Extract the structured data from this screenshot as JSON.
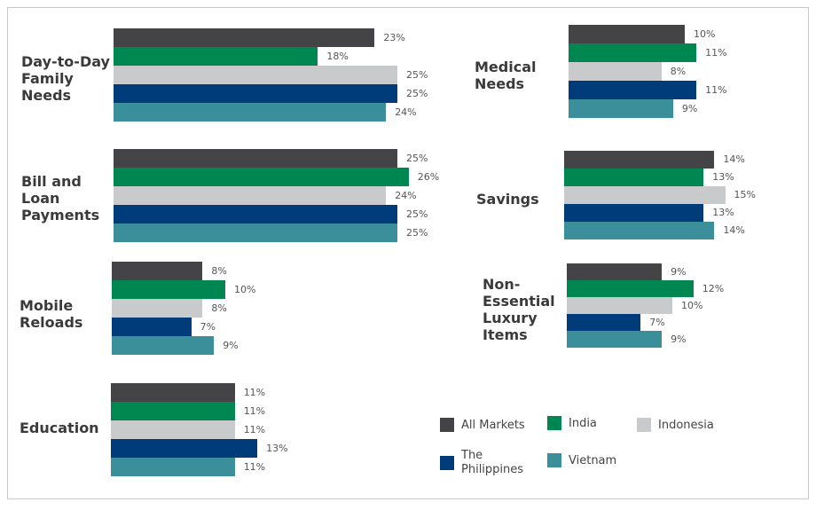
{
  "chart_data": {
    "type": "bar",
    "orientation": "horizontal",
    "unit": "%",
    "legend_position": "bottom-right",
    "grid": false,
    "series": [
      {
        "name": "All Markets",
        "color": "#444447"
      },
      {
        "name": "India",
        "color": "#008751"
      },
      {
        "name": "Indonesia",
        "color": "#c9cacc"
      },
      {
        "name": "The Philippines",
        "color": "#003b7a"
      },
      {
        "name": "Vietnam",
        "color": "#3a8f9a"
      }
    ],
    "panels": [
      {
        "category": "Day-to-Day Family Needs",
        "values": [
          23,
          18,
          25,
          25,
          24
        ],
        "labels": [
          "23%",
          "18%",
          "25%",
          "25%",
          "24%"
        ]
      },
      {
        "category": "Bill and Loan Payments",
        "values": [
          25,
          26,
          24,
          25,
          25
        ],
        "labels": [
          "25%",
          "26%",
          "24%",
          "25%",
          "25%"
        ]
      },
      {
        "category": "Mobile Reloads",
        "values": [
          8,
          10,
          8,
          7,
          9
        ],
        "labels": [
          "8%",
          "10%",
          "8%",
          "7%",
          "9%"
        ]
      },
      {
        "category": "Education",
        "values": [
          11,
          11,
          11,
          13,
          11
        ],
        "labels": [
          "11%",
          "11%",
          "11%",
          "13%",
          "11%"
        ]
      },
      {
        "category": "Medical Needs",
        "values": [
          10,
          11,
          8,
          11,
          9
        ],
        "labels": [
          "10%",
          "11%",
          "8%",
          "11%",
          "9%"
        ]
      },
      {
        "category": "Savings",
        "values": [
          14,
          13,
          15,
          13,
          14
        ],
        "labels": [
          "14%",
          "13%",
          "15%",
          "13%",
          "14%"
        ]
      },
      {
        "category": "Non-Essential Luxury Items",
        "values": [
          9,
          12,
          10,
          7,
          9
        ],
        "labels": [
          "9%",
          "12%",
          "10%",
          "7%",
          "9%"
        ]
      }
    ]
  }
}
